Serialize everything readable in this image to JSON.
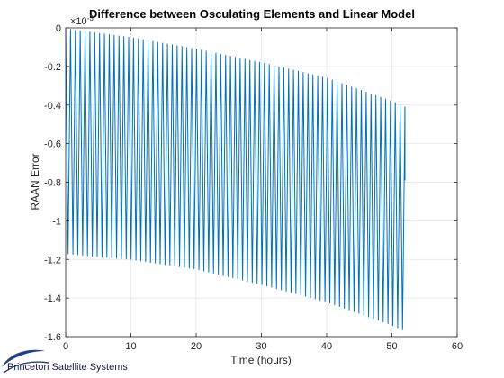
{
  "chart_data": {
    "type": "line",
    "title": "Difference between Osculating Elements and Linear Model",
    "xlabel": "Time (hours)",
    "ylabel": "RAAN Error",
    "y_exponent_label": "×10",
    "y_exponent": "-3",
    "xlim": [
      0,
      60
    ],
    "ylim": [
      -1.6,
      0
    ],
    "x_ticks": [
      0,
      10,
      20,
      30,
      40,
      50,
      60
    ],
    "y_ticks": [
      0,
      -0.2,
      -0.4,
      -0.6,
      -0.8,
      -1,
      -1.2,
      -1.4,
      -1.6
    ],
    "x_tick_labels": [
      "0",
      "10",
      "20",
      "30",
      "40",
      "50",
      "60"
    ],
    "y_tick_labels": [
      "0",
      "-0.2",
      "-0.4",
      "-0.6",
      "-0.8",
      "-1",
      "-1.2",
      "-1.4",
      "-1.6"
    ],
    "grid": true,
    "series": [
      {
        "color": "#0072bd",
        "x_end": 52,
        "oscillation_cycles": 70,
        "upper_envelope": [
          [
            0,
            -0.005
          ],
          [
            10,
            -0.05
          ],
          [
            20,
            -0.11
          ],
          [
            30,
            -0.18
          ],
          [
            40,
            -0.26
          ],
          [
            50,
            -0.38
          ],
          [
            52,
            -0.41
          ]
        ],
        "lower_envelope": [
          [
            0,
            -1.17
          ],
          [
            10,
            -1.2
          ],
          [
            20,
            -1.25
          ],
          [
            30,
            -1.33
          ],
          [
            40,
            -1.42
          ],
          [
            50,
            -1.54
          ],
          [
            52,
            -1.57
          ]
        ],
        "end_value": -0.79
      }
    ]
  },
  "logo": {
    "text": "Princeton Satellite Systems"
  }
}
